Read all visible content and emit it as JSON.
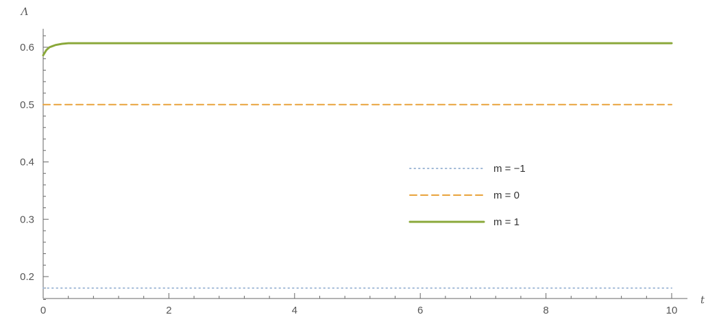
{
  "chart_data": {
    "type": "line",
    "xlabel": "t",
    "ylabel": "Λ",
    "xlim": [
      0,
      10
    ],
    "ylim": [
      0.15,
      0.63
    ],
    "x_ticks": [
      0,
      2,
      4,
      6,
      8,
      10
    ],
    "x_tick_labels": [
      "0",
      "2",
      "4",
      "6",
      "8",
      "10"
    ],
    "y_ticks": [
      0.2,
      0.3,
      0.4,
      0.5,
      0.6
    ],
    "y_tick_labels": [
      "0.2",
      "0.3",
      "0.4",
      "0.5",
      "0.6"
    ],
    "legend_position": "center-right",
    "series": [
      {
        "name": "m = −1",
        "style": "dotted",
        "color": "#9fb8d6",
        "x": [
          0,
          10
        ],
        "y": [
          0.18,
          0.18
        ]
      },
      {
        "name": "m = 0",
        "style": "dashed",
        "color": "#e8a23a",
        "x": [
          0,
          10
        ],
        "y": [
          0.5,
          0.5
        ]
      },
      {
        "name": "m = 1",
        "style": "solid",
        "color": "#8aa83a",
        "x": [
          0,
          0.05,
          0.1,
          0.15,
          0.2,
          0.3,
          0.4,
          0.5,
          1,
          2,
          4,
          6,
          8,
          10
        ],
        "y": [
          0.586,
          0.595,
          0.6,
          0.602,
          0.604,
          0.606,
          0.607,
          0.607,
          0.607,
          0.607,
          0.607,
          0.607,
          0.607,
          0.607
        ]
      }
    ]
  }
}
